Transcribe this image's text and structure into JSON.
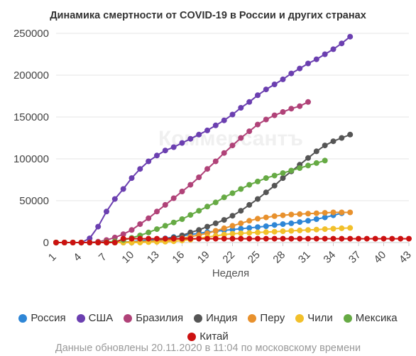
{
  "chart_data": {
    "type": "line",
    "title": "Динамика смертности от COVID-19 в России и других странах",
    "watermark": "Коммерсантъ",
    "xlabel": "Неделя",
    "ylabel": "",
    "xlim": [
      1,
      43
    ],
    "ylim": [
      0,
      250000
    ],
    "x_ticks": [
      1,
      4,
      7,
      10,
      13,
      16,
      19,
      22,
      25,
      28,
      31,
      34,
      37,
      40,
      43
    ],
    "y_ticks": [
      0,
      50000,
      100000,
      150000,
      200000,
      250000
    ],
    "y_tick_labels": [
      "0",
      "50000",
      "100000",
      "150000",
      "200000",
      "250000"
    ],
    "grid": true,
    "legend_position": "bottom",
    "series": [
      {
        "name": "Россия",
        "color": "#2e86d6",
        "start_week": 1,
        "values": [
          0,
          0,
          0,
          0,
          0,
          0,
          0,
          0,
          500,
          1000,
          2000,
          3000,
          4000,
          5000,
          6500,
          8000,
          9500,
          11000,
          12500,
          13500,
          14500,
          15500,
          16500,
          17500,
          18500,
          19500,
          21000,
          22000,
          23000,
          24500,
          26000,
          28000,
          30000,
          32500,
          35000
        ]
      },
      {
        "name": "США",
        "color": "#6b3fb0",
        "start_week": 1,
        "values": [
          0,
          0,
          0,
          0,
          5000,
          19000,
          37000,
          52000,
          64000,
          77000,
          88000,
          97000,
          104000,
          110000,
          114000,
          119000,
          124000,
          129000,
          134000,
          140000,
          146000,
          153000,
          161000,
          168000,
          176000,
          183000,
          189000,
          195000,
          202000,
          208000,
          214000,
          219000,
          225000,
          231000,
          238000,
          246000
        ]
      },
      {
        "name": "Бразилия",
        "color": "#b04278",
        "start_week": 1,
        "values": [
          0,
          0,
          0,
          0,
          0,
          1000,
          3000,
          6000,
          10000,
          15000,
          22000,
          29000,
          37000,
          45000,
          53000,
          61000,
          69000,
          78000,
          88000,
          97000,
          107000,
          116000,
          125000,
          133000,
          141000,
          147000,
          152000,
          156000,
          160000,
          163000,
          168000
        ]
      },
      {
        "name": "Индия",
        "color": "#555555",
        "start_week": 1,
        "values": [
          0,
          0,
          0,
          0,
          0,
          0,
          0,
          0,
          0,
          0,
          1000,
          1500,
          2500,
          4000,
          6000,
          8500,
          12000,
          15000,
          19000,
          23000,
          27000,
          32000,
          38000,
          45000,
          52000,
          60000,
          68000,
          77000,
          85000,
          93000,
          101000,
          109000,
          116000,
          121000,
          125000,
          129000
        ]
      },
      {
        "name": "Перу",
        "color": "#e8912d",
        "start_week": 1,
        "values": [
          0,
          0,
          0,
          0,
          0,
          0,
          0,
          0,
          500,
          800,
          1000,
          1500,
          2000,
          2500,
          3500,
          5000,
          7000,
          9000,
          11000,
          14000,
          17000,
          20000,
          23000,
          26000,
          28500,
          30000,
          31500,
          32500,
          33500,
          34000,
          34500,
          35000,
          35500,
          36000,
          36000,
          36000
        ]
      },
      {
        "name": "Чили",
        "color": "#f2c02a",
        "start_week": 1,
        "values": [
          0,
          0,
          0,
          0,
          0,
          0,
          0,
          0,
          0,
          0,
          0,
          500,
          800,
          1000,
          1500,
          2500,
          3500,
          5000,
          6500,
          8000,
          9500,
          10500,
          11000,
          11500,
          12000,
          12500,
          13000,
          13500,
          14000,
          14500,
          15000,
          15500,
          16000,
          16500,
          17000,
          17500
        ]
      },
      {
        "name": "Мексика",
        "color": "#66aa44",
        "start_week": 1,
        "values": [
          0,
          0,
          0,
          0,
          0,
          0,
          500,
          1500,
          3000,
          5500,
          8500,
          12000,
          16000,
          20000,
          24000,
          28000,
          33000,
          38000,
          43000,
          48000,
          54000,
          59000,
          64000,
          69000,
          73000,
          77000,
          80000,
          83000,
          86000,
          89000,
          92000,
          95000,
          98000
        ]
      },
      {
        "name": "Китай",
        "color": "#cc1111",
        "start_week": 1,
        "values": [
          0,
          0,
          0,
          0,
          0,
          0,
          0,
          0,
          4600,
          4600,
          4600,
          4600,
          4600,
          4600,
          4600,
          4600,
          4600,
          4600,
          4600,
          4600,
          4600,
          4600,
          4600,
          4600,
          4600,
          4600,
          4600,
          4600,
          4600,
          4600,
          4600,
          4600,
          4600,
          4600,
          4600,
          4600,
          4600,
          4600,
          4600,
          4600,
          4600,
          4600,
          4600
        ]
      }
    ]
  },
  "footer": "Данные обновлены 20.11.2020 в 11:04 по московскому времени"
}
